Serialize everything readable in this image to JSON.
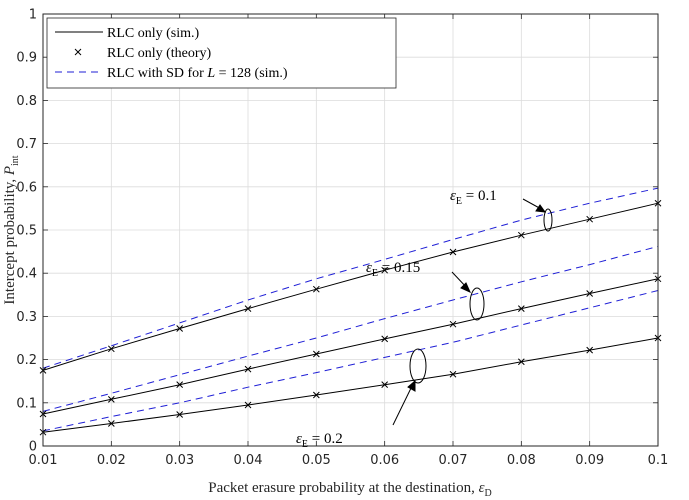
{
  "chart_data": {
    "type": "line",
    "xlabel": "Packet erasure probability at the destination, ",
    "xlabel_symbol": "ε",
    "xlabel_sub": "D",
    "ylabel": "Intercept probability, ",
    "ylabel_symbol": "P",
    "ylabel_sub": "int",
    "xlim": [
      0.01,
      0.1
    ],
    "ylim": [
      0,
      1
    ],
    "xticks": [
      "0.01",
      "0.02",
      "0.03",
      "0.04",
      "0.05",
      "0.06",
      "0.07",
      "0.08",
      "0.09",
      "0.1"
    ],
    "yticks": [
      "0",
      "0.1",
      "0.2",
      "0.3",
      "0.4",
      "0.5",
      "0.6",
      "0.7",
      "0.8",
      "0.9",
      "1"
    ],
    "grid": true,
    "legend_position": "top-left",
    "legend": [
      {
        "label": "RLC only (sim.)",
        "style": "solid",
        "color": "#000000"
      },
      {
        "label": "RLC only (theory)",
        "style": "marker-x",
        "color": "#000000"
      },
      {
        "label_pre": "RLC with SD for ",
        "label_math": "L",
        "label_eq": " = 128",
        "label_post": " (sim.)",
        "style": "dashed",
        "color": "#1f1fd6"
      }
    ],
    "x": [
      0.01,
      0.02,
      0.03,
      0.04,
      0.05,
      0.06,
      0.07,
      0.08,
      0.09,
      0.1
    ],
    "series": [
      {
        "group": "εE = 0.1",
        "kind": "sim",
        "values": [
          0.175,
          0.225,
          0.272,
          0.318,
          0.363,
          0.407,
          0.449,
          0.488,
          0.525,
          0.562
        ]
      },
      {
        "group": "εE = 0.1",
        "kind": "theory",
        "values": [
          0.175,
          0.225,
          0.272,
          0.318,
          0.363,
          0.407,
          0.449,
          0.488,
          0.525,
          0.562
        ]
      },
      {
        "group": "εE = 0.1",
        "kind": "sd",
        "values": [
          0.18,
          0.232,
          0.285,
          0.338,
          0.387,
          0.432,
          0.478,
          0.523,
          0.562,
          0.597
        ]
      },
      {
        "group": "εE = 0.15",
        "kind": "sim",
        "values": [
          0.074,
          0.108,
          0.142,
          0.178,
          0.213,
          0.248,
          0.282,
          0.318,
          0.353,
          0.387
        ]
      },
      {
        "group": "εE = 0.15",
        "kind": "theory",
        "values": [
          0.074,
          0.108,
          0.142,
          0.178,
          0.213,
          0.248,
          0.282,
          0.318,
          0.353,
          0.387
        ]
      },
      {
        "group": "εE = 0.15",
        "kind": "sd",
        "values": [
          0.08,
          0.122,
          0.165,
          0.208,
          0.25,
          0.295,
          0.338,
          0.38,
          0.42,
          0.462
        ]
      },
      {
        "group": "εE = 0.2",
        "kind": "sim",
        "values": [
          0.032,
          0.052,
          0.073,
          0.095,
          0.118,
          0.142,
          0.166,
          0.195,
          0.222,
          0.25
        ]
      },
      {
        "group": "εE = 0.2",
        "kind": "theory",
        "values": [
          0.032,
          0.052,
          0.073,
          0.095,
          0.118,
          0.142,
          0.166,
          0.195,
          0.222,
          0.25
        ]
      },
      {
        "group": "εE = 0.2",
        "kind": "sd",
        "values": [
          0.035,
          0.068,
          0.1,
          0.136,
          0.17,
          0.205,
          0.24,
          0.28,
          0.32,
          0.36
        ]
      }
    ],
    "annotations": [
      {
        "symbol": "ε",
        "sub": "E",
        "text": " = 0.1"
      },
      {
        "symbol": "ε",
        "sub": "E",
        "text": " = 0.15"
      },
      {
        "symbol": "ε",
        "sub": "E",
        "text": " = 0.2"
      }
    ],
    "colors": {
      "sim": "#000000",
      "sd": "#1f1fd6",
      "grid": "#dcdcdc",
      "axis": "#262626"
    }
  }
}
